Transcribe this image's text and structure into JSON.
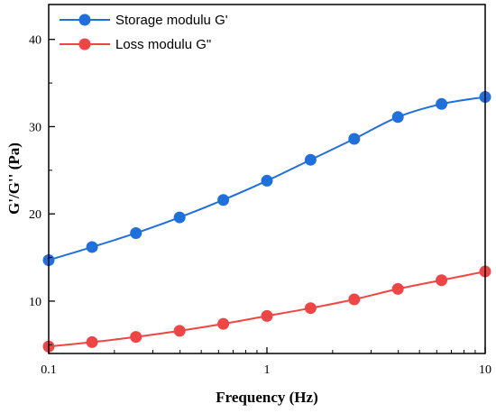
{
  "chart_data": {
    "type": "line",
    "xlabel": "Frequency (Hz)",
    "ylabel": "G'/G'' (Pa)",
    "xscale": "log",
    "xlim": [
      0.1,
      10
    ],
    "ylim": [
      4,
      44
    ],
    "xticks": [
      0.1,
      1,
      10
    ],
    "xtick_labels": [
      "0.1",
      "1",
      "10"
    ],
    "yticks": [
      10,
      20,
      30,
      40
    ],
    "ytick_labels": [
      "10",
      "20",
      "30",
      "40"
    ],
    "grid": false,
    "legend_position": "top-left",
    "x": [
      0.1,
      0.158,
      0.251,
      0.398,
      0.631,
      1.0,
      1.585,
      2.512,
      3.981,
      6.31,
      10.0
    ],
    "series": [
      {
        "name": "Storage modulu G'",
        "color": "#1f6fdc",
        "marker": "circle",
        "values": [
          14.7,
          16.2,
          17.8,
          19.6,
          21.6,
          23.8,
          26.2,
          28.6,
          31.1,
          32.6,
          33.4
        ]
      },
      {
        "name": "Loss modulu G\"",
        "color": "#f04545",
        "marker": "circle",
        "values": [
          4.8,
          5.3,
          5.9,
          6.6,
          7.4,
          8.3,
          9.2,
          10.2,
          11.4,
          12.4,
          13.4
        ]
      }
    ]
  }
}
